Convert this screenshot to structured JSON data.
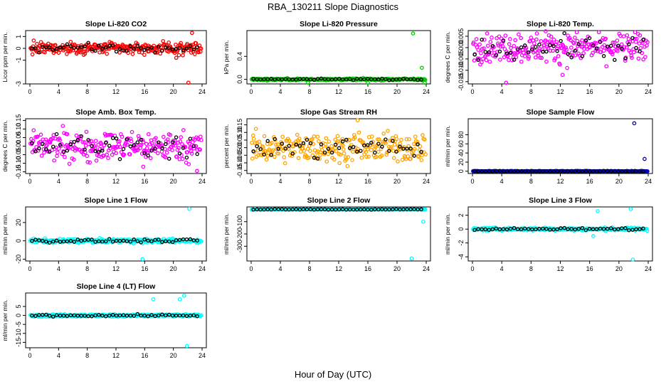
{
  "figure": {
    "title": "RBA_130211  Slope Diagnostics",
    "xlabel": "Hour of Day (UTC)"
  },
  "chart_data": [
    {
      "type": "scatter",
      "title": "Slope Li-820 CO2",
      "ylabel": "Licor ppm per min.",
      "color": "#ff0000",
      "xlim": [
        0,
        24
      ],
      "ylim": [
        -3,
        1.5
      ],
      "xticks": [
        0,
        4,
        8,
        12,
        16,
        20,
        24
      ],
      "yticks": [
        -3,
        -1,
        0,
        1
      ],
      "noise": 0.35,
      "special": [
        [
          22.1,
          -2.9
        ],
        [
          22.6,
          1.3
        ],
        [
          20.4,
          -0.8
        ]
      ]
    },
    {
      "type": "scatter",
      "title": "Slope Li-820 Pressure",
      "ylabel": "kPa per min.",
      "color": "#00cc00",
      "xlim": [
        0,
        24
      ],
      "ylim": [
        -0.08,
        0.85
      ],
      "xticks": [
        0,
        4,
        8,
        12,
        16,
        20,
        24
      ],
      "yticks": [
        0.0,
        0.4
      ],
      "noise": 0.012,
      "special": [
        [
          22.2,
          0.8
        ],
        [
          23.4,
          0.2
        ],
        [
          7.8,
          -0.06
        ],
        [
          16.0,
          -0.06
        ],
        [
          23.8,
          -0.06
        ]
      ]
    },
    {
      "type": "scatter",
      "title": "Slope Li-820 Temp.",
      "ylabel": "degrees C per min.",
      "color": "#ff00ff",
      "xlim": [
        0,
        24
      ],
      "ylim": [
        -0.016,
        0.0075
      ],
      "xticks": [
        0,
        4,
        8,
        12,
        16,
        20,
        24
      ],
      "yticks": [
        -0.015,
        -0.01,
        -0.005,
        0.0,
        0.005
      ],
      "noise": 0.0045,
      "special": [
        [
          4.6,
          -0.0155
        ],
        [
          12.3,
          -0.012
        ],
        [
          10.0,
          0.0072
        ]
      ]
    },
    {
      "type": "scatter",
      "title": "Slope Amb. Box Temp.",
      "ylabel": "degrees C per min.",
      "color": "#ff00ff",
      "xlim": [
        0,
        24
      ],
      "ylim": [
        -0.16,
        0.16
      ],
      "xticks": [
        0,
        4,
        8,
        12,
        16,
        20,
        24
      ],
      "yticks": [
        -0.15,
        -0.1,
        -0.05,
        0.0,
        0.05,
        0.1,
        0.15
      ],
      "noise": 0.06,
      "special": [
        [
          23.3,
          -0.145
        ],
        [
          15.8,
          -0.12
        ]
      ]
    },
    {
      "type": "scatter",
      "title": "Slope Gas Stream RH",
      "ylabel": "percent per min.",
      "color": "#ffa500",
      "xlim": [
        0,
        24
      ],
      "ylim": [
        -0.17,
        0.19
      ],
      "xticks": [
        0,
        4,
        8,
        12,
        16,
        20,
        24
      ],
      "yticks": [
        -0.15,
        -0.1,
        -0.05,
        0.0,
        0.05,
        0.1,
        0.15
      ],
      "noise": 0.065,
      "special": [
        [
          14.6,
          0.18
        ]
      ]
    },
    {
      "type": "scatter",
      "title": "Slope Sample Flow",
      "ylabel": "ml/min per min.",
      "color": "#0000cc",
      "xlim": [
        0,
        24
      ],
      "ylim": [
        -5,
        115
      ],
      "xticks": [
        0,
        4,
        8,
        12,
        16,
        20,
        24
      ],
      "yticks": [
        0,
        20,
        40,
        60,
        80
      ],
      "noise": 0.6,
      "special": [
        [
          22.1,
          105
        ],
        [
          23.5,
          27
        ]
      ]
    },
    {
      "type": "scatter",
      "title": "Slope Line 1 Flow",
      "ylabel": "ml/min per min.",
      "color": "#00ffff",
      "xlim": [
        0,
        24
      ],
      "ylim": [
        -22,
        37
      ],
      "xticks": [
        0,
        4,
        8,
        12,
        16,
        20,
        24
      ],
      "yticks": [
        -20,
        0,
        20
      ],
      "noise": 1.5,
      "special": [
        [
          22.2,
          35
        ],
        [
          15.7,
          -20
        ]
      ]
    },
    {
      "type": "scatter",
      "title": "Slope Line 2 Flow",
      "ylabel": "ml/min per min.",
      "color": "#00ffff",
      "xlim": [
        0,
        24
      ],
      "ylim": [
        -420,
        20
      ],
      "xticks": [
        0,
        4,
        8,
        12,
        16,
        20,
        24
      ],
      "yticks": [
        -300,
        -200,
        -100
      ],
      "noise": 2,
      "special": [
        [
          22.0,
          -400
        ],
        [
          23.6,
          -100
        ]
      ]
    },
    {
      "type": "scatter",
      "title": "Slope Line 3 Flow",
      "ylabel": "ml/min per min.",
      "color": "#00ffff",
      "xlim": [
        0,
        24
      ],
      "ylim": [
        -4.6,
        3.2
      ],
      "xticks": [
        0,
        4,
        8,
        12,
        16,
        20,
        24
      ],
      "yticks": [
        -4,
        -2,
        0,
        2
      ],
      "noise": 0.15,
      "special": [
        [
          21.9,
          -4.4
        ],
        [
          21.6,
          2.9
        ],
        [
          17.1,
          2.6
        ],
        [
          16.5,
          -1.0
        ]
      ]
    },
    {
      "type": "scatter",
      "title": "Slope Line 4 (LT) Flow",
      "ylabel": "ml/min per min.",
      "color": "#00ffff",
      "xlim": [
        0,
        24
      ],
      "ylim": [
        -18,
        12.5
      ],
      "xticks": [
        0,
        4,
        8,
        12,
        16,
        20,
        24
      ],
      "yticks": [
        -15,
        -10,
        -5,
        0,
        5
      ],
      "noise": 0.5,
      "special": [
        [
          21.9,
          -17
        ],
        [
          21.5,
          11
        ],
        [
          17.2,
          9
        ],
        [
          20.9,
          9
        ]
      ]
    }
  ]
}
